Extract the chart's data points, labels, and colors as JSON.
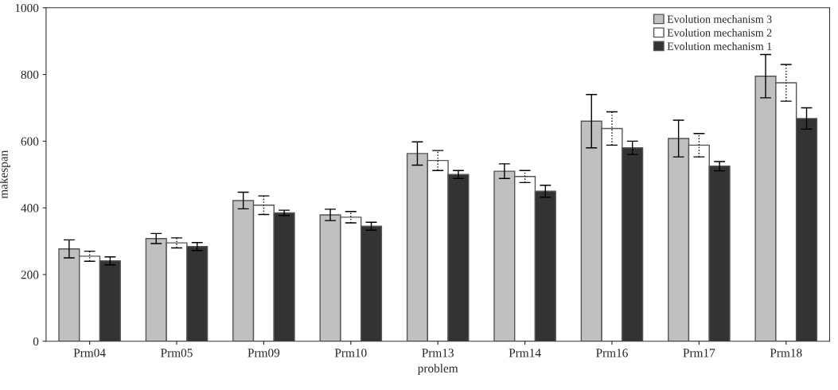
{
  "chart_data": {
    "type": "bar",
    "xlabel": "problem",
    "ylabel": "makespan",
    "categories": [
      "Prm04",
      "Prm05",
      "Prm09",
      "Prm10",
      "Prm13",
      "Prm14",
      "Prm16",
      "Prm17",
      "Prm18"
    ],
    "series": [
      {
        "name": "Evolution mechanism 3",
        "color": "#c0c0c0",
        "values": [
          277,
          308,
          422,
          379,
          563,
          510,
          660,
          608,
          795
        ],
        "errors": [
          27,
          15,
          25,
          17,
          35,
          22,
          80,
          55,
          65
        ],
        "line_style": "solid"
      },
      {
        "name": "Evolution mechanism 2",
        "color": "#ffffff",
        "values": [
          255,
          295,
          408,
          372,
          542,
          494,
          638,
          588,
          775
        ],
        "errors": [
          15,
          15,
          28,
          17,
          30,
          18,
          50,
          35,
          55
        ],
        "line_style": "dotted"
      },
      {
        "name": "Evolution mechanism 1",
        "color": "#333333",
        "values": [
          241,
          284,
          385,
          345,
          500,
          450,
          580,
          525,
          668
        ],
        "errors": [
          12,
          12,
          8,
          12,
          12,
          18,
          20,
          14,
          32
        ],
        "line_style": "solid"
      }
    ],
    "ylim": [
      0,
      1000
    ],
    "yticks": [
      0,
      200,
      400,
      600,
      800,
      1000
    ],
    "grid": false,
    "legend": "top right"
  }
}
